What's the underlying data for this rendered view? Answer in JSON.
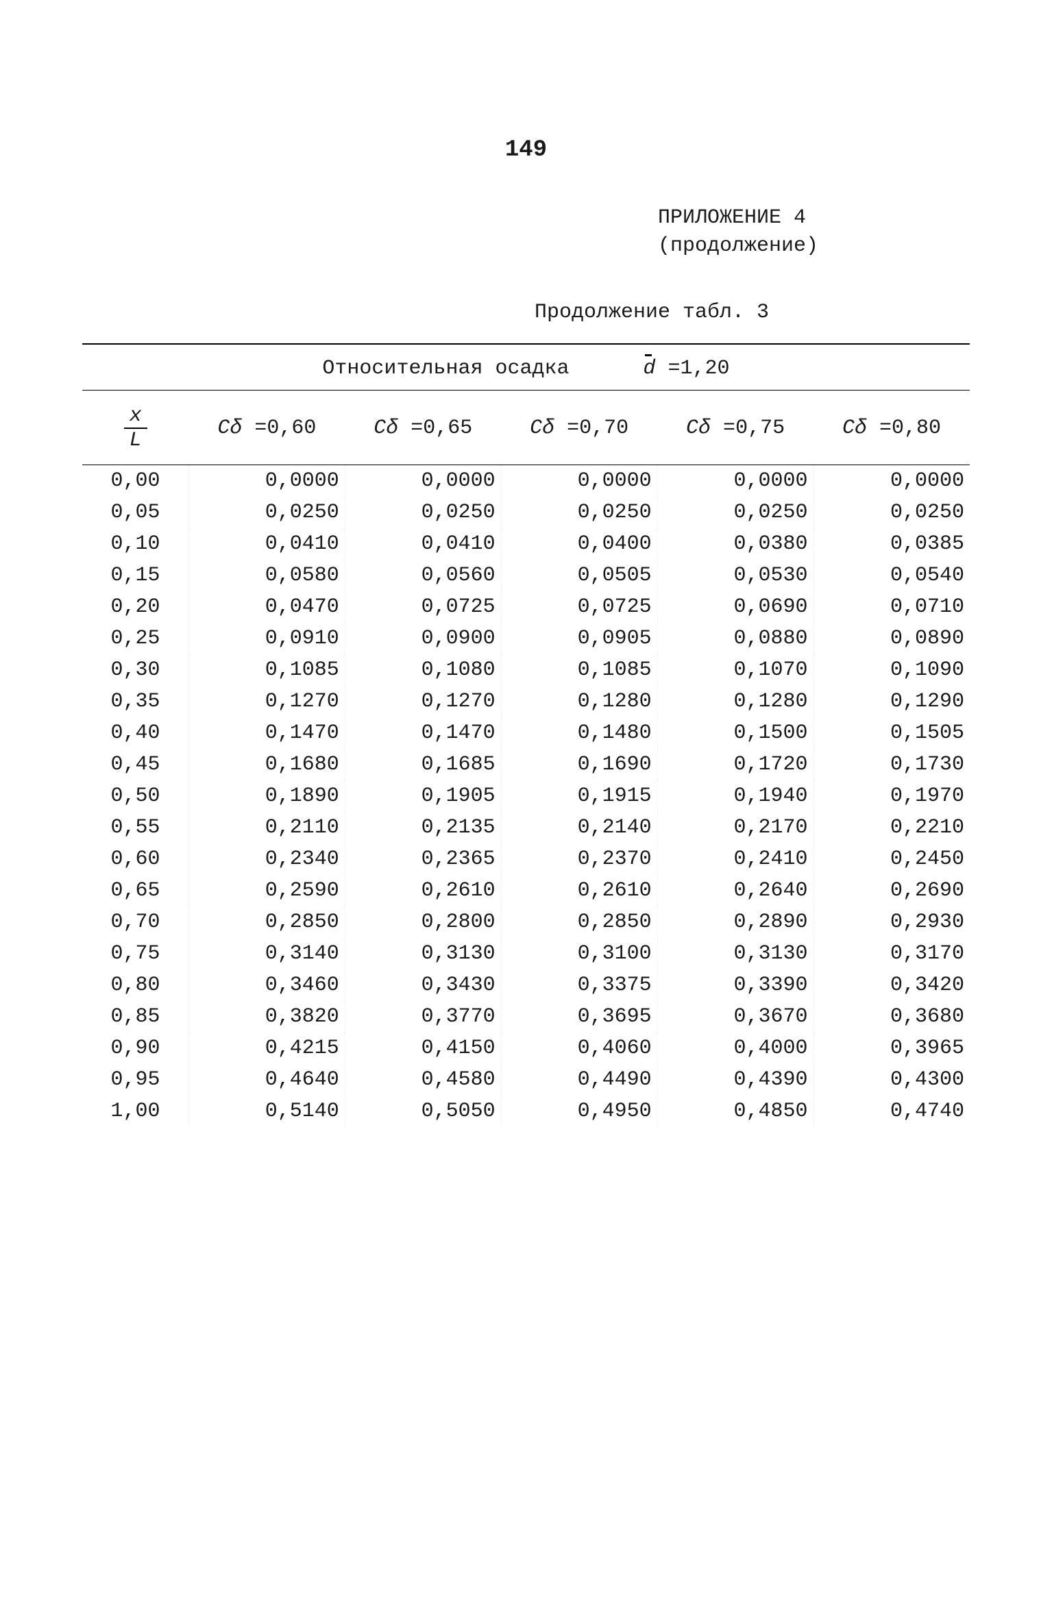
{
  "page_number_label": "149",
  "appendix_line1": "ПРИЛОЖЕНИЕ 4",
  "appendix_line2": "(продолжение)",
  "table_caption": "Продолжение табл. 3",
  "super_header_prefix": "Относительная осадка",
  "super_header_param_symbol": "d",
  "super_header_param_value": " =1,20",
  "frac_num": "x",
  "frac_den": "L",
  "col_symbol": "Cδ",
  "col_values": [
    "0,60",
    "0,65",
    "0,70",
    "0,75",
    "0,80"
  ],
  "table": {
    "columns": [
      "x/L",
      "Cδ =0,60",
      "Cδ =0,65",
      "Cδ =0,70",
      "Cδ =0,75",
      "Cδ =0,80"
    ],
    "rows": [
      [
        "0,00",
        "0,0000",
        "0,0000",
        "0,0000",
        "0,0000",
        "0,0000"
      ],
      [
        "0,05",
        "0,0250",
        "0,0250",
        "0,0250",
        "0,0250",
        "0,0250"
      ],
      [
        "0,10",
        "0,0410",
        "0,0410",
        "0,0400",
        "0,0380",
        "0,0385"
      ],
      [
        "0,15",
        "0,0580",
        "0,0560",
        "0,0505",
        "0,0530",
        "0,0540"
      ],
      [
        "0,20",
        "0,0470",
        "0,0725",
        "0,0725",
        "0,0690",
        "0,0710"
      ],
      [
        "0,25",
        "0,0910",
        "0,0900",
        "0,0905",
        "0,0880",
        "0,0890"
      ],
      [
        "0,30",
        "0,1085",
        "0,1080",
        "0,1085",
        "0,1070",
        "0,1090"
      ],
      [
        "0,35",
        "0,1270",
        "0,1270",
        "0,1280",
        "0,1280",
        "0,1290"
      ],
      [
        "0,40",
        "0,1470",
        "0,1470",
        "0,1480",
        "0,1500",
        "0,1505"
      ],
      [
        "0,45",
        "0,1680",
        "0,1685",
        "0,1690",
        "0,1720",
        "0,1730"
      ],
      [
        "0,50",
        "0,1890",
        "0,1905",
        "0,1915",
        "0,1940",
        "0,1970"
      ],
      [
        "0,55",
        "0,2110",
        "0,2135",
        "0,2140",
        "0,2170",
        "0,2210"
      ],
      [
        "0,60",
        "0,2340",
        "0,2365",
        "0,2370",
        "0,2410",
        "0,2450"
      ],
      [
        "0,65",
        "0,2590",
        "0,2610",
        "0,2610",
        "0,2640",
        "0,2690"
      ],
      [
        "0,70",
        "0,2850",
        "0,2800",
        "0,2850",
        "0,2890",
        "0,2930"
      ],
      [
        "0,75",
        "0,3140",
        "0,3130",
        "0,3100",
        "0,3130",
        "0,3170"
      ],
      [
        "0,80",
        "0,3460",
        "0,3430",
        "0,3375",
        "0,3390",
        "0,3420"
      ],
      [
        "0,85",
        "0,3820",
        "0,3770",
        "0,3695",
        "0,3670",
        "0,3680"
      ],
      [
        "0,90",
        "0,4215",
        "0,4150",
        "0,4060",
        "0,4000",
        "0,3965"
      ],
      [
        "0,95",
        "0,4640",
        "0,4580",
        "0,4490",
        "0,4390",
        "0,4300"
      ],
      [
        "1,00",
        "0,5140",
        "0,5050",
        "0,4950",
        "0,4850",
        "0,4740"
      ]
    ]
  },
  "styling": {
    "font_family": "Courier New",
    "body_fontsize_pt": 22,
    "text_color": "#1a1a1a",
    "background_color": "#ffffff",
    "rule_color": "#000000",
    "column_separator_color": "rgba(0,0,0,0.08)",
    "table_type": "table"
  }
}
